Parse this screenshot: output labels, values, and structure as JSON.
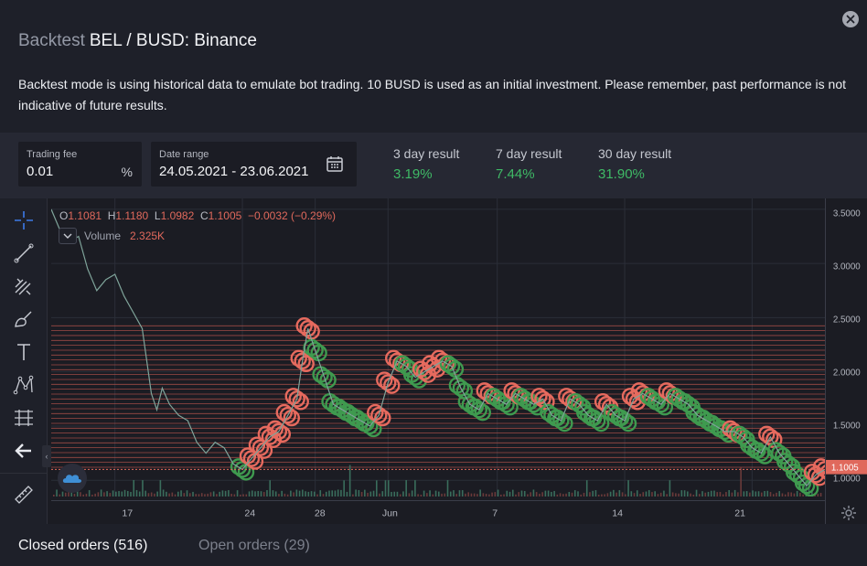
{
  "header": {
    "title_muted": "Backtest",
    "title": "BEL / BUSD: Binance",
    "description": "Backtest mode is using historical data to emulate bot trading. 10 BUSD is used as an initial investment. Please remember, past performance is not indicative of future results."
  },
  "controls": {
    "trading_fee": {
      "label": "Trading fee",
      "value": "0.01",
      "unit": "%"
    },
    "date_range": {
      "label": "Date range",
      "value": "24.05.2021 - 23.06.2021"
    },
    "results": [
      {
        "label": "3 day result",
        "value": "3.19%"
      },
      {
        "label": "7 day result",
        "value": "7.44%"
      },
      {
        "label": "30 day result",
        "value": "31.90%"
      }
    ]
  },
  "ohlc": {
    "o_label": "O",
    "o": "1.1081",
    "h_label": "H",
    "h": "1.1180",
    "l_label": "L",
    "l": "1.0982",
    "c_label": "C",
    "c": "1.1005",
    "change": "−0.0032 (−0.29%)"
  },
  "volume": {
    "label": "Volume",
    "value": "2.325K"
  },
  "colors": {
    "accent_green": "#3fba66",
    "accent_red": "#e0695c",
    "sell_circle": "#e66a5e",
    "buy_circle": "#3f9a4f",
    "background": "#1e2029"
  },
  "tools": [
    "crosshair-icon",
    "trend-line-icon",
    "fib-icon",
    "brush-icon",
    "text-icon",
    "pattern-icon",
    "measure-lines-icon",
    "back-arrow-icon",
    "ruler-icon"
  ],
  "chart_data": {
    "type": "line",
    "price_label": "1.1005",
    "y_axis": {
      "ticks": [
        "3.5000",
        "3.0000",
        "2.5000",
        "2.0000",
        "1.5000",
        "1.0000"
      ],
      "tick_values": [
        3.5,
        3.0,
        2.5,
        2.0,
        1.5,
        1.0
      ],
      "ylim": [
        0.85,
        3.6
      ]
    },
    "x_axis": {
      "ticks": [
        "17",
        "24",
        "28",
        "Jun",
        "7",
        "14",
        "21"
      ],
      "tick_days": [
        0,
        7,
        11,
        15,
        21,
        28,
        35
      ]
    },
    "xlim_days": [
      -3.5,
      39
    ],
    "grid": true,
    "series": [
      {
        "x_days": [
          -3.5,
          -3,
          -2.5,
          -2,
          -1.5,
          -1,
          -0.5,
          0,
          0.5,
          1,
          1.5,
          2,
          2.3,
          2.6,
          3,
          3.5,
          4,
          4.5,
          5,
          5.5,
          6,
          6.5,
          7,
          7.5,
          8,
          8.5,
          9,
          9.5,
          10,
          10.3,
          10.6,
          11,
          11.5,
          12,
          12.5,
          13,
          13.5,
          14,
          14.5,
          15,
          15.5,
          16,
          16.5,
          17,
          17.5,
          18,
          18.5,
          19,
          19.5,
          20,
          20.5,
          21,
          21.5,
          22,
          22.5,
          23,
          23.5,
          24,
          24.5,
          25,
          25.5,
          26,
          26.5,
          27,
          27.5,
          28,
          28.5,
          29,
          29.5,
          30,
          30.5,
          31,
          31.5,
          32,
          32.5,
          33,
          33.5,
          34,
          34.5,
          35,
          35.5,
          36,
          36.5,
          37,
          37.5,
          38,
          38.5,
          39
        ],
        "values": [
          3.5,
          3.3,
          3.2,
          3.25,
          2.95,
          2.75,
          2.85,
          2.9,
          2.7,
          2.55,
          2.4,
          1.8,
          1.65,
          1.85,
          1.7,
          1.6,
          1.55,
          1.35,
          1.25,
          1.35,
          1.3,
          1.15,
          1.1,
          1.2,
          1.3,
          1.4,
          1.45,
          1.6,
          1.75,
          2.1,
          2.4,
          2.2,
          1.95,
          1.7,
          1.65,
          1.6,
          1.55,
          1.5,
          1.6,
          1.9,
          2.1,
          2.05,
          1.95,
          2.0,
          2.05,
          2.1,
          2.05,
          1.85,
          1.7,
          1.65,
          1.8,
          1.75,
          1.7,
          1.8,
          1.75,
          1.7,
          1.75,
          1.6,
          1.55,
          1.75,
          1.7,
          1.6,
          1.55,
          1.7,
          1.6,
          1.55,
          1.75,
          1.8,
          1.75,
          1.7,
          1.8,
          1.75,
          1.7,
          1.6,
          1.55,
          1.5,
          1.45,
          1.45,
          1.4,
          1.3,
          1.25,
          1.4,
          1.25,
          1.15,
          1.05,
          0.95,
          1.05,
          1.1
        ]
      }
    ]
  },
  "tabs": {
    "closed": "Closed orders (516)",
    "open": "Open orders (29)"
  }
}
